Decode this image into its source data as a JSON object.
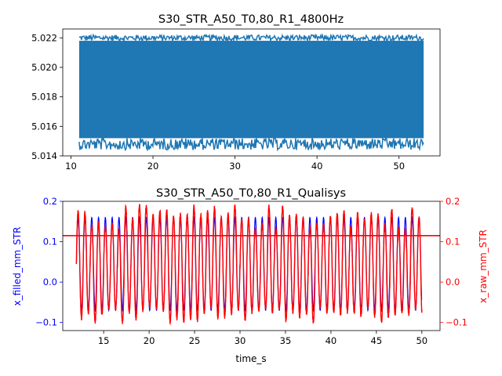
{
  "colors": {
    "signal": "#1f77b4",
    "filled": "#0000ff",
    "raw": "#ff0000",
    "axis": "#000000",
    "background": "#ffffff"
  },
  "chart_data": [
    {
      "type": "line",
      "title": "S30_STR_A50_T0,80_R1_4800Hz",
      "xlabel": "",
      "ylabel": "",
      "xlim": [
        9.0,
        55.0
      ],
      "ylim": [
        5.014,
        5.0226
      ],
      "xticks": [
        10,
        20,
        30,
        40,
        50
      ],
      "xtick_labels": [
        "10",
        "20",
        "30",
        "40",
        "50"
      ],
      "yticks": [
        5.014,
        5.016,
        5.018,
        5.02,
        5.022
      ],
      "ytick_labels": [
        "5.014",
        "5.016",
        "5.018",
        "5.020",
        "5.022"
      ],
      "grid": false,
      "series": [
        {
          "color": "#1f77b4",
          "x_range": [
            11.0,
            53.0
          ],
          "band_low": 5.0152,
          "band_high": 5.0218,
          "noise_low_min": 5.0144,
          "noise_high_max": 5.0222
        }
      ]
    },
    {
      "type": "line",
      "title": "S30_STR_A50_T0,80_R1_Qualisys",
      "xlabel": "time_s",
      "ylabel": "x_filled_mm_STR",
      "ylabel_right": "x_raw_mm_STR",
      "xlim": [
        10.5,
        52.0
      ],
      "ylim": [
        -0.12,
        0.2
      ],
      "ylim_right": [
        -0.12,
        0.2
      ],
      "xticks": [
        15,
        20,
        25,
        30,
        35,
        40,
        45,
        50
      ],
      "xtick_labels": [
        "15",
        "20",
        "25",
        "30",
        "35",
        "40",
        "45",
        "50"
      ],
      "yticks": [
        -0.1,
        0.0,
        0.1,
        0.2
      ],
      "ytick_labels": [
        "−0.1",
        "0.0",
        "0.1",
        "0.2"
      ],
      "yticks_right": [
        -0.1,
        0.0,
        0.1,
        0.2
      ],
      "ytick_labels_right": [
        "−0.1",
        "0.0",
        "0.1",
        "0.2"
      ],
      "grid": false,
      "series": [
        {
          "color": "#0000ff",
          "axis": "left",
          "x_range": [
            12.0,
            50.0
          ],
          "period": 0.75,
          "peak": 0.16,
          "trough": -0.07
        },
        {
          "color": "#ff0000",
          "axis": "right",
          "x_range": [
            12.0,
            50.0
          ],
          "period": 0.75,
          "peak_range": [
            0.13,
            0.19
          ],
          "trough_range": [
            -0.1,
            -0.06
          ]
        },
        {
          "color": "#ff0000",
          "axis": "right",
          "kind": "horizontal-line",
          "y": 0.115
        }
      ]
    }
  ]
}
